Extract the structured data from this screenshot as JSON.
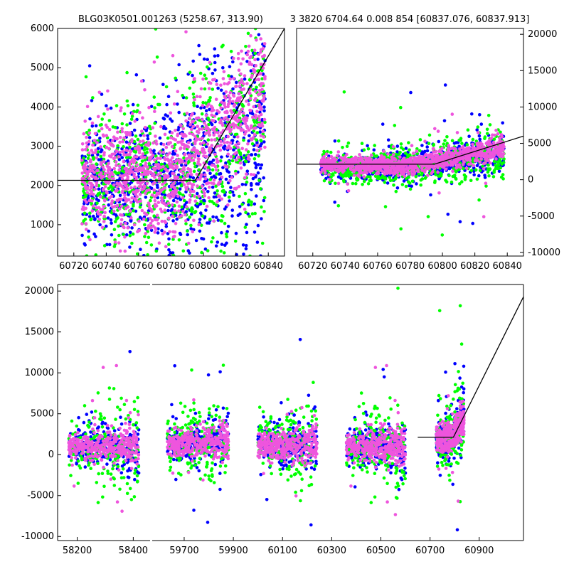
{
  "titles": {
    "left": "BLG03K0501.001263 (5258.67, 313.90)",
    "right": "3 3820 6704.64 0.008 854 [60837.076, 60837.913]"
  },
  "colors": {
    "series_a": "#0000ff",
    "series_b": "#00ff00",
    "series_c": "#ee55dd",
    "model": "#000000"
  },
  "chart_data": [
    {
      "type": "scatter",
      "panel": "zoom-linear",
      "xlim": [
        60710,
        60850
      ],
      "ylim": [
        200,
        6000
      ],
      "xticks": [
        60720,
        60740,
        60760,
        60780,
        60800,
        60820,
        60840
      ],
      "yticks": [
        1000,
        2000,
        3000,
        4000,
        5000,
        6000
      ],
      "ytick_side": "left",
      "model_line": {
        "x": [
          60710,
          60795,
          60850
        ],
        "y": [
          2130,
          2130,
          6000
        ]
      },
      "series": [
        {
          "color": "#0000ff",
          "x_range": [
            60725,
            60838
          ],
          "baseline": [
            2000,
            3400
          ],
          "scatter": [
            700,
            1400
          ],
          "count": 900
        },
        {
          "color": "#00ff00",
          "x_range": [
            60725,
            60838
          ],
          "baseline": [
            2100,
            3400
          ],
          "scatter": [
            800,
            1700
          ],
          "count": 700
        },
        {
          "color": "#ee55dd",
          "x_range": [
            60725,
            60838
          ],
          "baseline": [
            2200,
            4600
          ],
          "scatter": [
            600,
            900
          ],
          "count": 1100
        }
      ]
    },
    {
      "type": "scatter",
      "panel": "zoom-wide",
      "xlim": [
        60710,
        60850
      ],
      "ylim": [
        -10500,
        20800
      ],
      "xticks": [
        60720,
        60740,
        60760,
        60780,
        60800,
        60820,
        60840
      ],
      "yticks": [
        -10000,
        -5000,
        0,
        5000,
        10000,
        15000,
        20000
      ],
      "ytick_side": "right",
      "model_line": {
        "x": [
          60710,
          60795,
          60850
        ],
        "y": [
          2130,
          2130,
          6000
        ]
      },
      "series": [
        {
          "color": "#0000ff",
          "x_range": [
            60725,
            60838
          ],
          "baseline": [
            1800,
            3600
          ],
          "scatter": [
            700,
            1200
          ],
          "count": 800
        },
        {
          "color": "#00ff00",
          "x_range": [
            60725,
            60838
          ],
          "baseline": [
            1900,
            3400
          ],
          "scatter": [
            1000,
            1800
          ],
          "count": 600
        },
        {
          "color": "#ee55dd",
          "x_range": [
            60725,
            60838
          ],
          "baseline": [
            2000,
            4400
          ],
          "scatter": [
            500,
            800
          ],
          "count": 1000
        }
      ]
    },
    {
      "type": "scatter",
      "panel": "full-season",
      "ylim": [
        -10500,
        20800
      ],
      "yticks": [
        -10000,
        -5000,
        0,
        5000,
        10000,
        15000,
        20000
      ],
      "ytick_side": "left",
      "segments": [
        {
          "xlim": [
            58130,
            58460
          ],
          "xticks": [
            58200,
            58400
          ],
          "seasons": [
            {
              "x_range": [
                58170,
                58420
              ],
              "baseline": [
                1000,
                1000
              ]
            }
          ]
        },
        {
          "xlim": [
            59570,
            61080
          ],
          "xticks": [
            59700,
            59900,
            60100,
            60300,
            60500,
            60700,
            60900
          ],
          "seasons": [
            {
              "x_range": [
                59630,
                59880
              ],
              "baseline": [
                1500,
                1500
              ]
            },
            {
              "x_range": [
                60000,
                60240
              ],
              "baseline": [
                1200,
                1200
              ]
            },
            {
              "x_range": [
                60360,
                60600
              ],
              "baseline": [
                1000,
                1000
              ]
            },
            {
              "x_range": [
                60725,
                60838
              ],
              "baseline": [
                2000,
                4500
              ]
            }
          ],
          "model_line": {
            "x": [
              60650,
              60795,
              61080
            ],
            "y": [
              2130,
              2130,
              19300
            ]
          }
        }
      ],
      "series": [
        {
          "color": "#0000ff",
          "scatter": [
            900,
            1800
          ],
          "count_per_season": 260
        },
        {
          "color": "#00ff00",
          "scatter": [
            1500,
            3000
          ],
          "count_per_season": 180
        },
        {
          "color": "#ee55dd",
          "scatter": [
            700,
            1100
          ],
          "count_per_season": 360
        }
      ]
    }
  ]
}
